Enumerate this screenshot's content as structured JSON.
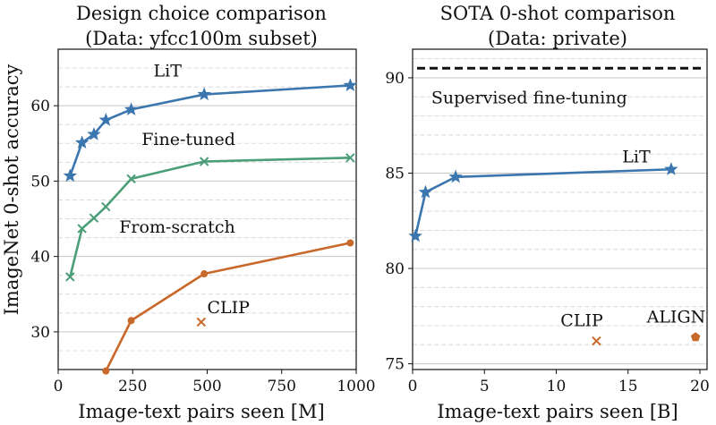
{
  "chart_data": [
    {
      "type": "line",
      "title": "Design choice comparison",
      "subtitle": "(Data: yfcc100m subset)",
      "xlabel": "Image-text pairs seen [M]",
      "ylabel": "ImageNet 0-shot accuracy",
      "xlim": [
        0,
        1000
      ],
      "ylim": [
        25,
        67.5
      ],
      "xticks": [
        0,
        250,
        500,
        750,
        1000
      ],
      "xtick_labels": [
        "0",
        "250",
        "500",
        "750",
        "1000"
      ],
      "yticks": [
        30,
        40,
        50,
        60
      ],
      "ytick_labels": [
        "30",
        "40",
        "50",
        "60"
      ],
      "grid_minor_y": [
        27.5,
        32.5,
        35,
        37.5,
        42.5,
        45,
        47.5,
        52.5,
        55,
        57.5,
        62.5,
        65
      ],
      "series": [
        {
          "name": "LiT",
          "color": "#3b76af",
          "marker": "star",
          "x": [
            40,
            80,
            120,
            160,
            245,
            490,
            980
          ],
          "y": [
            50.7,
            55.1,
            56.2,
            58.1,
            59.5,
            61.5,
            62.7
          ],
          "label_x": 320,
          "label_y": 64.7
        },
        {
          "name": "Fine-tuned",
          "color": "#4a9e78",
          "marker": "x",
          "x": [
            40,
            80,
            120,
            160,
            245,
            490,
            980
          ],
          "y": [
            37.3,
            43.7,
            45.1,
            46.6,
            50.3,
            52.6,
            53.1
          ],
          "label_x": 280,
          "label_y": 55.6
        },
        {
          "name": "From-scratch",
          "color": "#c8682a",
          "marker": "dot",
          "x": [
            160,
            245,
            490,
            980
          ],
          "y": [
            24.8,
            31.5,
            37.7,
            41.8
          ],
          "label_x": 205,
          "label_y": 44.0
        },
        {
          "name": "CLIP",
          "color": "#c8682a",
          "marker": "x",
          "x": [
            480
          ],
          "y": [
            31.3
          ],
          "label_x": 500,
          "label_y": 33.3
        }
      ]
    },
    {
      "type": "line",
      "title": "SOTA 0-shot comparison",
      "subtitle": "(Data: private)",
      "xlabel": "Image-text pairs seen [B]",
      "ylabel": "",
      "xlim": [
        0,
        20.5
      ],
      "ylim": [
        74.7,
        91.5
      ],
      "xticks": [
        0,
        5,
        10,
        15,
        20
      ],
      "xtick_labels": [
        "0",
        "5",
        "10",
        "15",
        "20"
      ],
      "yticks": [
        75,
        80,
        85,
        90
      ],
      "ytick_labels": [
        "75",
        "80",
        "85",
        "90"
      ],
      "grid_minor_y": [
        76,
        77,
        78,
        79,
        81,
        82,
        83,
        84,
        86,
        87,
        88,
        89,
        91
      ],
      "reference_line": {
        "name": "Supervised fine-tuning",
        "y": 90.5,
        "color": "#111111",
        "label_x": 1.3,
        "label_y": 89.0
      },
      "series": [
        {
          "name": "LiT",
          "color": "#3b76af",
          "marker": "star",
          "x": [
            0.2,
            0.9,
            3.0,
            18.0
          ],
          "y": [
            81.7,
            84.0,
            84.8,
            85.2
          ],
          "label_x": 14.6,
          "label_y": 85.9
        },
        {
          "name": "CLIP",
          "color": "#c8682a",
          "marker": "x",
          "x": [
            12.8
          ],
          "y": [
            76.2
          ],
          "label_x": 10.3,
          "label_y": 77.3
        },
        {
          "name": "ALIGN",
          "color": "#c8682a",
          "marker": "pentagon",
          "x": [
            19.7
          ],
          "y": [
            76.4
          ],
          "label_x": 16.3,
          "label_y": 77.5
        }
      ]
    }
  ]
}
